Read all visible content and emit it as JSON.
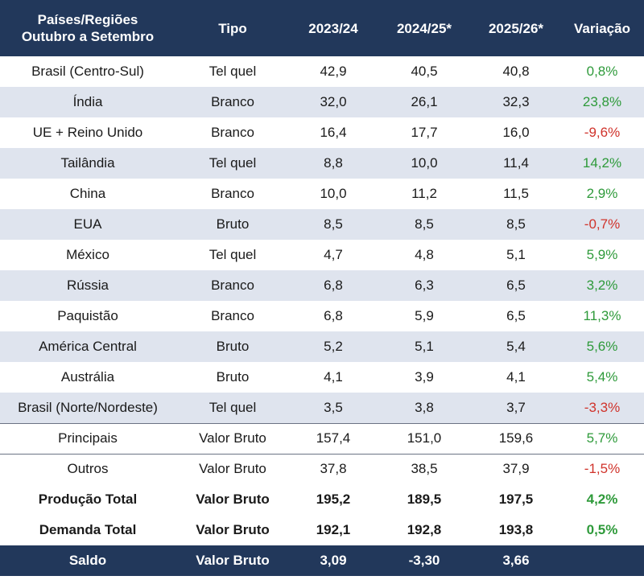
{
  "header": {
    "region": "Países/Regiões Outubro a Setembro",
    "type": "Tipo",
    "y1": "2023/24",
    "y2": "2024/25*",
    "y3": "2025/26*",
    "change": "Variação"
  },
  "colors": {
    "header_bg": "#22385b",
    "stripe": "#dfe4ee",
    "positive": "#2e9a3a",
    "negative": "#d0332b"
  },
  "rows": [
    {
      "region": "Brasil (Centro-Sul)",
      "type": "Tel quel",
      "y1": "42,9",
      "y2": "40,5",
      "y3": "40,8",
      "change": "0,8%"
    },
    {
      "region": "Índia",
      "type": "Branco",
      "y1": "32,0",
      "y2": "26,1",
      "y3": "32,3",
      "change": "23,8%"
    },
    {
      "region": "UE + Reino Unido",
      "type": "Branco",
      "y1": "16,4",
      "y2": "17,7",
      "y3": "16,0",
      "change": "-9,6%"
    },
    {
      "region": "Tailândia",
      "type": "Tel quel",
      "y1": "8,8",
      "y2": "10,0",
      "y3": "11,4",
      "change": "14,2%"
    },
    {
      "region": "China",
      "type": "Branco",
      "y1": "10,0",
      "y2": "11,2",
      "y3": "11,5",
      "change": "2,9%"
    },
    {
      "region": "EUA",
      "type": "Bruto",
      "y1": "8,5",
      "y2": "8,5",
      "y3": "8,5",
      "change": "-0,7%"
    },
    {
      "region": "México",
      "type": "Tel quel",
      "y1": "4,7",
      "y2": "4,8",
      "y3": "5,1",
      "change": "5,9%"
    },
    {
      "region": "Rússia",
      "type": "Branco",
      "y1": "6,8",
      "y2": "6,3",
      "y3": "6,5",
      "change": "3,2%"
    },
    {
      "region": "Paquistão",
      "type": "Branco",
      "y1": "6,8",
      "y2": "5,9",
      "y3": "6,5",
      "change": "11,3%"
    },
    {
      "region": "América Central",
      "type": "Bruto",
      "y1": "5,2",
      "y2": "5,1",
      "y3": "5,4",
      "change": "5,6%"
    },
    {
      "region": "Austrália",
      "type": "Bruto",
      "y1": "4,1",
      "y2": "3,9",
      "y3": "4,1",
      "change": "5,4%"
    },
    {
      "region": "Brasil (Norte/Nordeste)",
      "type": "Tel quel",
      "y1": "3,5",
      "y2": "3,8",
      "y3": "3,7",
      "change": "-3,3%"
    },
    {
      "region": "Principais",
      "type": "Valor Bruto",
      "y1": "157,4",
      "y2": "151,0",
      "y3": "159,6",
      "change": "5,7%"
    },
    {
      "region": "Outros",
      "type": "Valor Bruto",
      "y1": "37,8",
      "y2": "38,5",
      "y3": "37,9",
      "change": "-1,5%"
    },
    {
      "region": "Produção Total",
      "type": "Valor Bruto",
      "y1": "195,2",
      "y2": "189,5",
      "y3": "197,5",
      "change": "4,2%"
    },
    {
      "region": "Demanda Total",
      "type": "Valor Bruto",
      "y1": "192,1",
      "y2": "192,8",
      "y3": "193,8",
      "change": "0,5%"
    },
    {
      "region": "Saldo",
      "type": "Valor Bruto",
      "y1": "3,09",
      "y2": "-3,30",
      "y3": "3,66",
      "change": ""
    }
  ]
}
